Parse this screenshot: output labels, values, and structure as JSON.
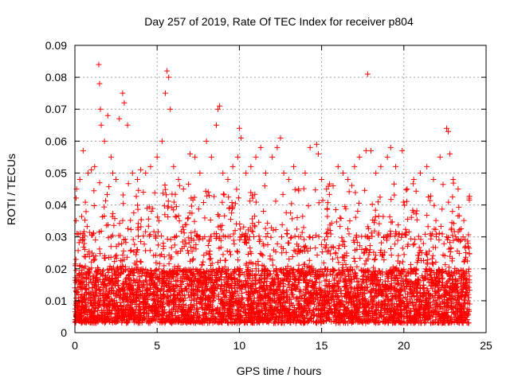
{
  "chart_data": {
    "type": "scatter",
    "title": "Day 257 of 2019, Rate Of TEC Index for receiver p804",
    "xlabel": "GPS time / hours",
    "ylabel": "ROTI / TECUs",
    "xlim": [
      0,
      25
    ],
    "ylim": [
      0,
      0.09
    ],
    "xticks": [
      0,
      5,
      10,
      15,
      20,
      25
    ],
    "xtick_labels": [
      "0",
      "5",
      "10",
      "15",
      "20",
      "25"
    ],
    "yticks": [
      0,
      0.01,
      0.02,
      0.03,
      0.04,
      0.05,
      0.06,
      0.07,
      0.08,
      0.09
    ],
    "ytick_labels": [
      "0",
      "0.01",
      "0.02",
      "0.03",
      "0.04",
      "0.05",
      "0.06",
      "0.07",
      "0.08",
      "0.09"
    ],
    "grid": true,
    "marker": "+",
    "color": "#ff0000",
    "series": [
      {
        "name": "ROTI",
        "x": [
          0.1,
          0.3,
          0.5,
          0.8,
          1.0,
          1.2,
          1.45,
          1.5,
          1.55,
          1.6,
          1.8,
          2.0,
          2.2,
          2.3,
          2.5,
          2.7,
          2.9,
          3.0,
          3.2,
          3.5,
          3.8,
          4.0,
          4.3,
          4.6,
          5.0,
          5.3,
          5.5,
          5.6,
          5.7,
          5.8,
          6.0,
          6.3,
          6.6,
          7.0,
          7.3,
          7.6,
          8.0,
          8.3,
          8.6,
          8.7,
          8.8,
          9.0,
          9.3,
          9.6,
          9.9,
          10.0,
          10.1,
          10.4,
          10.7,
          11.0,
          11.3,
          11.6,
          12.0,
          12.3,
          12.5,
          12.7,
          13.0,
          13.3,
          13.6,
          14.0,
          14.3,
          14.7,
          14.8,
          15.0,
          15.3,
          15.7,
          16.0,
          16.3,
          16.6,
          17.0,
          17.3,
          17.7,
          17.8,
          18.0,
          18.3,
          18.6,
          19.0,
          19.2,
          19.5,
          19.9,
          20.2,
          20.6,
          21.0,
          21.4,
          21.8,
          22.2,
          22.6,
          22.7,
          22.8,
          23.0,
          23.3,
          23.6,
          23.9,
          0.2,
          0.7,
          1.3,
          2.1,
          2.8,
          3.6,
          4.4,
          5.1,
          6.5,
          7.2,
          8.1,
          9.1,
          10.5,
          11.2,
          12.1,
          13.5,
          14.5,
          15.5,
          16.5,
          17.5,
          18.5,
          19.5,
          20.5,
          21.5,
          22.5,
          23.5,
          0.4,
          1.1,
          2.6,
          3.3,
          4.8,
          5.9,
          6.8,
          7.8,
          9.5,
          10.8,
          11.8,
          12.8,
          13.8,
          14.9,
          15.8,
          16.8,
          17.4,
          18.2,
          19.3,
          20.3,
          21.3,
          22.3,
          23.2,
          23.8
        ],
        "y": [
          0.045,
          0.048,
          0.057,
          0.05,
          0.051,
          0.052,
          0.084,
          0.078,
          0.07,
          0.065,
          0.06,
          0.068,
          0.055,
          0.05,
          0.048,
          0.067,
          0.075,
          0.072,
          0.065,
          0.05,
          0.048,
          0.051,
          0.05,
          0.052,
          0.055,
          0.06,
          0.075,
          0.082,
          0.08,
          0.07,
          0.052,
          0.048,
          0.045,
          0.056,
          0.055,
          0.05,
          0.06,
          0.055,
          0.065,
          0.07,
          0.071,
          0.05,
          0.048,
          0.052,
          0.055,
          0.064,
          0.061,
          0.05,
          0.052,
          0.055,
          0.058,
          0.05,
          0.055,
          0.058,
          0.061,
          0.05,
          0.048,
          0.052,
          0.045,
          0.05,
          0.058,
          0.059,
          0.056,
          0.048,
          0.045,
          0.046,
          0.052,
          0.05,
          0.048,
          0.052,
          0.055,
          0.057,
          0.081,
          0.057,
          0.05,
          0.052,
          0.055,
          0.058,
          0.052,
          0.057,
          0.045,
          0.048,
          0.05,
          0.052,
          0.048,
          0.055,
          0.064,
          0.063,
          0.056,
          0.048,
          0.045,
          0.03,
          0.028,
          0.01,
          0.012,
          0.015,
          0.013,
          0.011,
          0.012,
          0.014,
          0.01,
          0.013,
          0.012,
          0.011,
          0.015,
          0.01,
          0.013,
          0.012,
          0.011,
          0.014,
          0.013,
          0.012,
          0.01,
          0.015,
          0.011,
          0.013,
          0.012,
          0.014,
          0.011,
          0.005,
          0.004,
          0.006,
          0.005,
          0.004,
          0.006,
          0.005,
          0.004,
          0.006,
          0.005,
          0.004,
          0.006,
          0.005,
          0.004,
          0.006,
          0.005,
          0.004,
          0.006,
          0.005,
          0.004,
          0.006,
          0.005,
          0.004,
          0.006
        ]
      }
    ],
    "density_note_values": {
      "baseline_min": 0.003,
      "baseline_max": 0.03,
      "dense_band_max": 0.02
    }
  }
}
